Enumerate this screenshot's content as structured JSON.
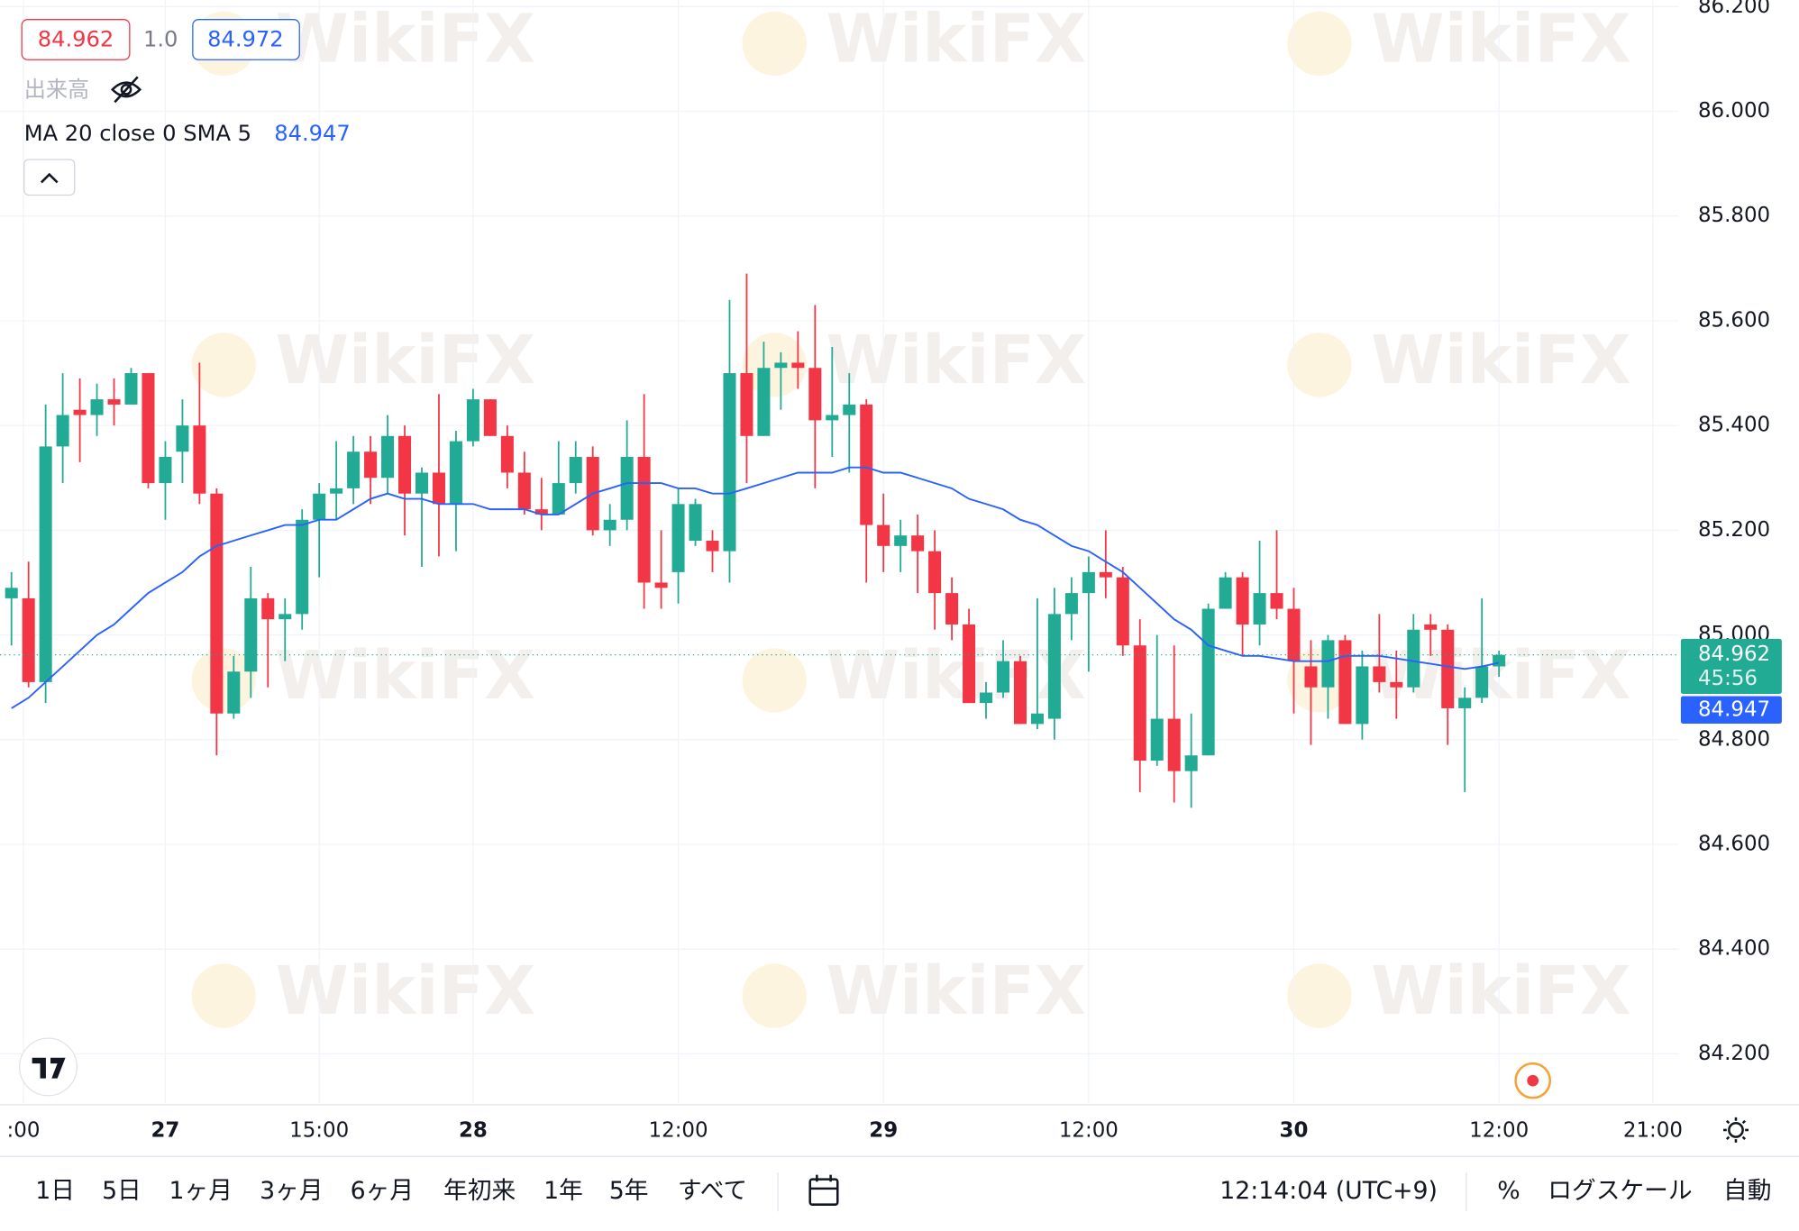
{
  "chart_data": {
    "type": "candlestick",
    "open": [
      85.07,
      85.07,
      84.91,
      85.36,
      85.43,
      85.42,
      85.45,
      85.44,
      85.5,
      85.29,
      85.35,
      85.4,
      85.27,
      84.85,
      84.93,
      85.07,
      85.03,
      85.04,
      85.22,
      85.27,
      85.28,
      85.35,
      85.3,
      85.38,
      85.27,
      85.31,
      85.25,
      85.37,
      85.45,
      85.38,
      85.31,
      85.24,
      85.23,
      85.29,
      85.34,
      85.2,
      85.22,
      85.34,
      85.1,
      85.12,
      85.18,
      85.18,
      85.16,
      85.5,
      85.38,
      85.51,
      85.52,
      85.51,
      85.41,
      85.42,
      85.44,
      85.21,
      85.17,
      85.19,
      85.16,
      85.08,
      85.02,
      84.87,
      84.89,
      84.95,
      84.83,
      84.84,
      85.04,
      85.08,
      85.12,
      85.11,
      84.98,
      84.76,
      84.84,
      84.74,
      84.77,
      85.05,
      85.11,
      85.02,
      85.08,
      85.05,
      84.94,
      84.9,
      84.99,
      84.83,
      84.94,
      84.91,
      84.9,
      85.02,
      85.01,
      84.86,
      84.88,
      84.94
    ],
    "high": [
      85.12,
      85.14,
      85.44,
      85.5,
      85.49,
      85.48,
      85.49,
      85.51,
      85.5,
      85.37,
      85.45,
      85.52,
      85.28,
      84.96,
      85.13,
      85.08,
      85.07,
      85.24,
      85.29,
      85.37,
      85.38,
      85.38,
      85.42,
      85.4,
      85.32,
      85.46,
      85.39,
      85.47,
      85.45,
      85.4,
      85.35,
      85.3,
      85.37,
      85.37,
      85.36,
      85.25,
      85.41,
      85.46,
      85.2,
      85.28,
      85.26,
      85.2,
      85.64,
      85.69,
      85.56,
      85.54,
      85.58,
      85.63,
      85.55,
      85.5,
      85.45,
      85.27,
      85.22,
      85.23,
      85.2,
      85.11,
      85.05,
      84.91,
      84.99,
      84.96,
      85.07,
      85.09,
      85.11,
      85.15,
      85.2,
      85.13,
      85.03,
      85.0,
      84.98,
      84.85,
      85.06,
      85.12,
      85.12,
      85.18,
      85.2,
      85.09,
      84.99,
      85.0,
      85.0,
      84.97,
      85.04,
      84.97,
      85.04,
      85.04,
      85.02,
      84.9,
      85.07,
      84.97
    ],
    "low": [
      84.98,
      84.9,
      84.87,
      85.29,
      85.33,
      85.38,
      85.4,
      85.44,
      85.28,
      85.22,
      85.29,
      85.25,
      84.77,
      84.84,
      84.88,
      84.9,
      84.95,
      85.01,
      85.11,
      85.22,
      85.25,
      85.25,
      85.27,
      85.19,
      85.13,
      85.15,
      85.16,
      85.36,
      85.38,
      85.28,
      85.23,
      85.2,
      85.23,
      85.27,
      85.19,
      85.17,
      85.2,
      85.05,
      85.05,
      85.06,
      85.17,
      85.12,
      85.1,
      85.29,
      85.38,
      85.43,
      85.47,
      85.28,
      85.34,
      85.31,
      85.1,
      85.12,
      85.12,
      85.08,
      85.01,
      84.99,
      84.87,
      84.84,
      84.88,
      84.83,
      84.82,
      84.8,
      84.99,
      84.93,
      85.07,
      84.96,
      84.7,
      84.75,
      84.68,
      84.67,
      84.77,
      85.05,
      84.96,
      84.98,
      85.03,
      84.85,
      84.79,
      84.84,
      84.83,
      84.8,
      84.89,
      84.84,
      84.89,
      84.96,
      84.79,
      84.7,
      84.87,
      84.92
    ],
    "close": [
      85.09,
      84.91,
      85.36,
      85.42,
      85.42,
      85.45,
      85.44,
      85.5,
      85.29,
      85.34,
      85.4,
      85.27,
      84.85,
      84.93,
      85.07,
      85.03,
      85.04,
      85.22,
      85.27,
      85.28,
      85.35,
      85.3,
      85.38,
      85.27,
      85.31,
      85.25,
      85.37,
      85.45,
      85.38,
      85.31,
      85.24,
      85.23,
      85.29,
      85.34,
      85.2,
      85.22,
      85.34,
      85.1,
      85.09,
      85.25,
      85.25,
      85.16,
      85.5,
      85.38,
      85.51,
      85.52,
      85.51,
      85.41,
      85.42,
      85.44,
      85.21,
      85.17,
      85.19,
      85.16,
      85.08,
      85.02,
      84.87,
      84.89,
      84.95,
      84.83,
      84.85,
      85.04,
      85.08,
      85.12,
      85.11,
      84.98,
      84.76,
      84.84,
      84.74,
      84.77,
      85.05,
      85.11,
      85.02,
      85.08,
      85.05,
      84.95,
      84.9,
      84.99,
      84.83,
      84.94,
      84.91,
      84.9,
      85.01,
      85.01,
      84.86,
      84.88,
      84.94,
      84.962
    ],
    "up_color": "#22ab94",
    "down_color": "#f23645",
    "series": [
      {
        "name": "MA 20 close 0 SMA 5",
        "color": "#2962ff",
        "values": [
          84.86,
          84.88,
          84.91,
          84.94,
          84.97,
          85.0,
          85.02,
          85.05,
          85.08,
          85.1,
          85.12,
          85.15,
          85.17,
          85.18,
          85.19,
          85.2,
          85.21,
          85.21,
          85.22,
          85.22,
          85.24,
          85.26,
          85.27,
          85.26,
          85.26,
          85.25,
          85.25,
          85.25,
          85.24,
          85.24,
          85.24,
          85.23,
          85.23,
          85.25,
          85.27,
          85.28,
          85.29,
          85.29,
          85.29,
          85.28,
          85.28,
          85.27,
          85.27,
          85.28,
          85.29,
          85.3,
          85.31,
          85.31,
          85.31,
          85.32,
          85.32,
          85.31,
          85.31,
          85.3,
          85.29,
          85.28,
          85.26,
          85.25,
          85.24,
          85.22,
          85.21,
          85.19,
          85.17,
          85.16,
          85.14,
          85.12,
          85.09,
          85.06,
          85.03,
          85.01,
          84.98,
          84.97,
          84.96,
          84.96,
          84.955,
          84.95,
          84.95,
          84.95,
          84.96,
          84.96,
          84.96,
          84.955,
          84.95,
          84.945,
          84.94,
          84.935,
          84.94,
          84.947
        ]
      }
    ],
    "xlim": [
      -0.2,
      97.5
    ],
    "xticks": [
      {
        "value": 0.7,
        "label": ":00"
      },
      {
        "value": 9,
        "label": "27"
      },
      {
        "value": 18,
        "label": "15:00"
      },
      {
        "value": 27,
        "label": "28"
      },
      {
        "value": 39,
        "label": "12:00"
      },
      {
        "value": 51,
        "label": "29"
      },
      {
        "value": 63,
        "label": "12:00"
      },
      {
        "value": 75,
        "label": "30"
      },
      {
        "value": 87,
        "label": "12:00"
      },
      {
        "value": 96,
        "label": "21:00"
      }
    ],
    "ylim": [
      84.105,
      86.2125
    ],
    "yticks": [
      {
        "value": 84.2,
        "label": "84.200"
      },
      {
        "value": 84.4,
        "label": "84.400"
      },
      {
        "value": 84.6,
        "label": "84.600"
      },
      {
        "value": 84.8,
        "label": "84.800"
      },
      {
        "value": 85,
        "label": "85.000"
      },
      {
        "value": 85.2,
        "label": "85.200"
      },
      {
        "value": 85.4,
        "label": "85.400"
      },
      {
        "value": 85.6,
        "label": "85.600"
      },
      {
        "value": 85.8,
        "label": "85.800"
      },
      {
        "value": 86,
        "label": "86.000"
      },
      {
        "value": 86.2,
        "label": "86.200"
      }
    ],
    "grid": true,
    "ask": 84.972,
    "spread": "1.0",
    "countdown": "45:56",
    "volume_label": "出来高",
    "watermark": "WikiFX"
  },
  "toolbar": {
    "ranges": [
      "1日",
      "5日",
      "1ヶ月",
      "3ヶ月",
      "6ヶ月",
      "年初来",
      "1年",
      "5年",
      "すべて"
    ],
    "time": "12:14:04 (UTC+9)",
    "percent": "%",
    "log_scale": "ログスケール",
    "auto": "自動"
  }
}
